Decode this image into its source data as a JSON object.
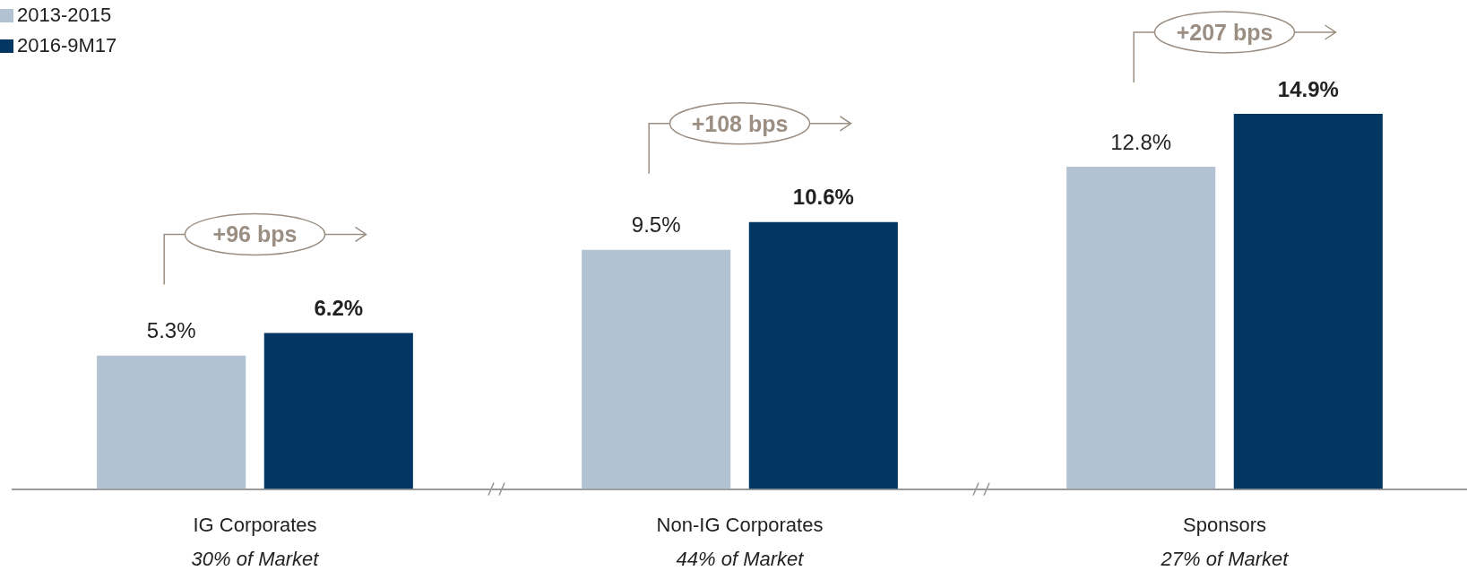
{
  "chart_data": {
    "type": "bar",
    "categories": [
      "IG Corporates",
      "Non-IG Corporates",
      "Sponsors"
    ],
    "series": [
      {
        "name": "2013-2015",
        "color": "#b3c2d3",
        "values": [
          5.3,
          9.5,
          12.8
        ],
        "value_labels": [
          "5.3%",
          "9.5%",
          "12.8%"
        ]
      },
      {
        "name": "2016-9M17",
        "color": "#023764",
        "values": [
          6.2,
          10.6,
          14.9
        ],
        "value_labels": [
          "6.2%",
          "10.6%",
          "14.9%"
        ]
      }
    ],
    "tick_labels": "x",
    "grid": false,
    "legend": "top left",
    "annotations": [
      "+96 bps",
      "+108 bps",
      "+207 bps",
      "30% of Market",
      "44% of Market",
      "27% of Market"
    ]
  }
}
